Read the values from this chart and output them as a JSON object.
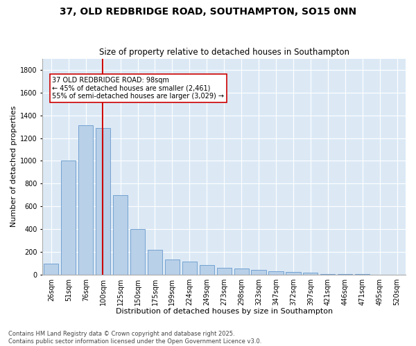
{
  "title": "37, OLD REDBRIDGE ROAD, SOUTHAMPTON, SO15 0NN",
  "subtitle": "Size of property relative to detached houses in Southampton",
  "xlabel": "Distribution of detached houses by size in Southampton",
  "ylabel": "Number of detached properties",
  "categories": [
    "26sqm",
    "51sqm",
    "76sqm",
    "100sqm",
    "125sqm",
    "150sqm",
    "175sqm",
    "199sqm",
    "224sqm",
    "249sqm",
    "273sqm",
    "298sqm",
    "323sqm",
    "347sqm",
    "372sqm",
    "397sqm",
    "421sqm",
    "446sqm",
    "471sqm",
    "495sqm",
    "520sqm"
  ],
  "values": [
    95,
    1000,
    1310,
    1290,
    700,
    400,
    215,
    130,
    115,
    80,
    60,
    50,
    38,
    28,
    20,
    18,
    5,
    2,
    1,
    0,
    0
  ],
  "bar_color": "#b8d0e8",
  "bar_edge_color": "#6699cc",
  "vline_color": "#cc0000",
  "vline_x": 2.96,
  "annotation_text": "37 OLD REDBRIDGE ROAD: 98sqm\n← 45% of detached houses are smaller (2,461)\n55% of semi-detached houses are larger (3,029) →",
  "annotation_box_color": "#ffffff",
  "annotation_box_edge_color": "#cc0000",
  "ylim": [
    0,
    1900
  ],
  "yticks": [
    0,
    200,
    400,
    600,
    800,
    1000,
    1200,
    1400,
    1600,
    1800
  ],
  "plot_bg_color": "#dce9f5",
  "footer_text": "Contains HM Land Registry data © Crown copyright and database right 2025.\nContains public sector information licensed under the Open Government Licence v3.0.",
  "title_fontsize": 10,
  "subtitle_fontsize": 8.5,
  "xlabel_fontsize": 8,
  "ylabel_fontsize": 8,
  "tick_fontsize": 7,
  "footer_fontsize": 6,
  "annotation_fontsize": 7
}
